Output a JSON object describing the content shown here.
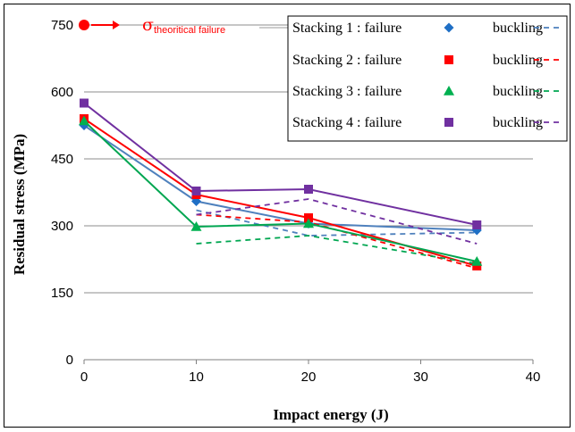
{
  "chart_data": {
    "type": "line",
    "title": "",
    "xlabel": "Impact energy (J)",
    "ylabel": "Residual stress (MPa)",
    "xlim": [
      0,
      40
    ],
    "ylim": [
      0,
      750
    ],
    "x_ticks": [
      "0",
      "10",
      "20",
      "30",
      "40"
    ],
    "y_ticks": [
      "0",
      "150",
      "300",
      "450",
      "600",
      "750"
    ],
    "grid": "horizontal",
    "legend_position": "top-right",
    "legend_labels": {
      "failure": "failure",
      "buckling": "buckling"
    },
    "annotation": {
      "symbol": "σ",
      "subscript": "theoritical failure",
      "x": 0,
      "y": 750,
      "color": "#ff0000"
    },
    "series": [
      {
        "name": "Stacking 1",
        "color": "#4f81bd",
        "marker": "diamond",
        "marker_color": "#1f6fc5",
        "failure": {
          "x": [
            0,
            10,
            20,
            35
          ],
          "y": [
            525,
            355,
            305,
            290
          ]
        },
        "buckling": {
          "x": [
            10,
            20,
            35
          ],
          "y": [
            335,
            278,
            285
          ]
        }
      },
      {
        "name": "Stacking 2",
        "color": "#ff0000",
        "marker": "square",
        "marker_color": "#ff0000",
        "failure": {
          "x": [
            0,
            10,
            20,
            35
          ],
          "y": [
            540,
            370,
            318,
            210
          ]
        },
        "buckling": {
          "x": [
            10,
            20,
            35
          ],
          "y": [
            325,
            308,
            205
          ]
        }
      },
      {
        "name": "Stacking 3",
        "color": "#00a651",
        "marker": "triangle",
        "marker_color": "#00b050",
        "failure": {
          "x": [
            0,
            10,
            20,
            35
          ],
          "y": [
            535,
            298,
            305,
            220
          ]
        },
        "buckling": {
          "x": [
            10,
            20,
            35
          ],
          "y": [
            260,
            278,
            215
          ]
        }
      },
      {
        "name": "Stacking 4",
        "color": "#7030a0",
        "marker": "square",
        "marker_color": "#7030a0",
        "failure": {
          "x": [
            0,
            10,
            20,
            35
          ],
          "y": [
            575,
            378,
            382,
            302
          ]
        },
        "buckling": {
          "x": [
            10,
            20,
            35
          ],
          "y": [
            325,
            360,
            260
          ]
        }
      }
    ]
  }
}
